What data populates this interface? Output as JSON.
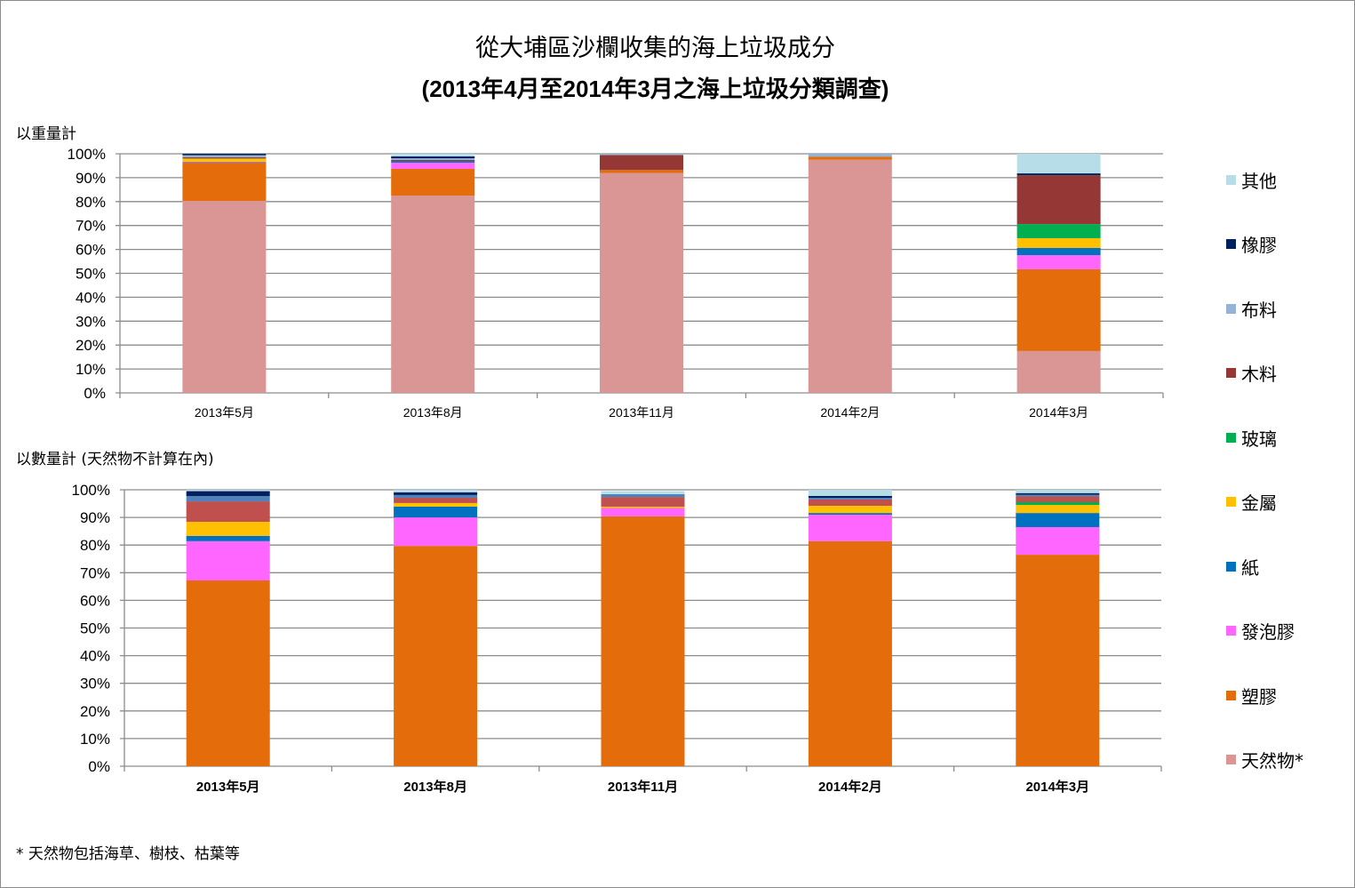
{
  "title": "從大埔區沙欄收集的海上垃圾成分",
  "subtitle": "(2013年4月至2014年3月之海上垃圾分類調查)",
  "footnote": "* 天然物包括海草、樹枝、枯葉等",
  "colors": {
    "其他": "#B7DEE8",
    "橡膠": "#002060",
    "布料": "#95B3D7",
    "木料": "#953735",
    "木料_count": "#C0504D",
    "布料_count": "#4F81BD",
    "玻璃": "#00B050",
    "金屬": "#FFC000",
    "紙": "#0070C0",
    "發泡膠": "#FF66FF",
    "塑膠": "#E46C0A",
    "天然物*": "#D99694"
  },
  "legend": [
    "其他",
    "橡膠",
    "布料",
    "木料",
    "玻璃",
    "金屬",
    "紙",
    "發泡膠",
    "塑膠",
    "天然物*"
  ],
  "chart_data": [
    {
      "type": "bar",
      "stacked": true,
      "title": "以重量計",
      "xlabel": "",
      "ylabel": "以重量計",
      "ylim": [
        0,
        100
      ],
      "yticks": [
        "0%",
        "10%",
        "20%",
        "30%",
        "40%",
        "50%",
        "60%",
        "70%",
        "80%",
        "90%",
        "100%"
      ],
      "categories": [
        "2013年5月",
        "2013年8月",
        "2013年11月",
        "2014年2月",
        "2014年3月"
      ],
      "grid": true,
      "legend_position": "right",
      "series": [
        {
          "name": "天然物*",
          "values": [
            80.3,
            82.5,
            92.0,
            97.5,
            17.5
          ]
        },
        {
          "name": "塑膠",
          "values": [
            16.0,
            11.2,
            1.2,
            1.2,
            34.2
          ]
        },
        {
          "name": "發泡膠",
          "values": [
            0.3,
            2.6,
            0.0,
            0.0,
            5.9
          ]
        },
        {
          "name": "紙",
          "values": [
            0.1,
            0.7,
            0.0,
            0.0,
            3.0
          ]
        },
        {
          "name": "金屬",
          "values": [
            1.3,
            0.0,
            0.0,
            0.0,
            4.1
          ]
        },
        {
          "name": "玻璃",
          "values": [
            0.0,
            0.0,
            0.0,
            0.0,
            5.9
          ]
        },
        {
          "name": "木料",
          "values": [
            0.5,
            0.5,
            6.3,
            0.0,
            20.4
          ]
        },
        {
          "name": "布料",
          "values": [
            0.9,
            0.6,
            0.5,
            1.3,
            0.0
          ]
        },
        {
          "name": "橡膠",
          "values": [
            0.6,
            0.8,
            0.0,
            0.0,
            0.8
          ]
        },
        {
          "name": "其他",
          "values": [
            0.0,
            1.1,
            0.0,
            0.0,
            8.2
          ]
        }
      ]
    },
    {
      "type": "bar",
      "stacked": true,
      "title": "以數量計 (天然物不計算在內)",
      "xlabel": "",
      "ylabel": "以數量計 (天然物不計算在內)",
      "ylim": [
        0,
        100
      ],
      "yticks": [
        "0%",
        "10%",
        "20%",
        "30%",
        "40%",
        "50%",
        "60%",
        "70%",
        "80%",
        "90%",
        "100%"
      ],
      "categories": [
        "2013年5月",
        "2013年8月",
        "2013年11月",
        "2014年2月",
        "2014年3月"
      ],
      "grid": true,
      "legend_position": "right",
      "series": [
        {
          "name": "塑膠",
          "values": [
            67.2,
            79.7,
            90.4,
            81.4,
            76.5
          ]
        },
        {
          "name": "發泡膠",
          "values": [
            14.2,
            10.3,
            3.0,
            9.6,
            10.0
          ]
        },
        {
          "name": "紙",
          "values": [
            1.9,
            3.9,
            0.0,
            0.6,
            5.1
          ]
        },
        {
          "name": "金屬",
          "values": [
            5.1,
            1.3,
            0.5,
            2.6,
            2.9
          ]
        },
        {
          "name": "玻璃",
          "values": [
            0.0,
            0.0,
            0.0,
            0.0,
            1.0
          ]
        },
        {
          "name": "木料",
          "values": [
            7.4,
            1.9,
            3.5,
            2.3,
            2.1
          ]
        },
        {
          "name": "布料",
          "values": [
            1.9,
            1.0,
            1.0,
            0.6,
            0.6
          ]
        },
        {
          "name": "橡膠",
          "values": [
            1.8,
            1.0,
            0.0,
            0.7,
            0.6
          ]
        },
        {
          "name": "其他",
          "values": [
            0.5,
            0.9,
            1.1,
            2.2,
            1.2
          ]
        }
      ]
    }
  ]
}
